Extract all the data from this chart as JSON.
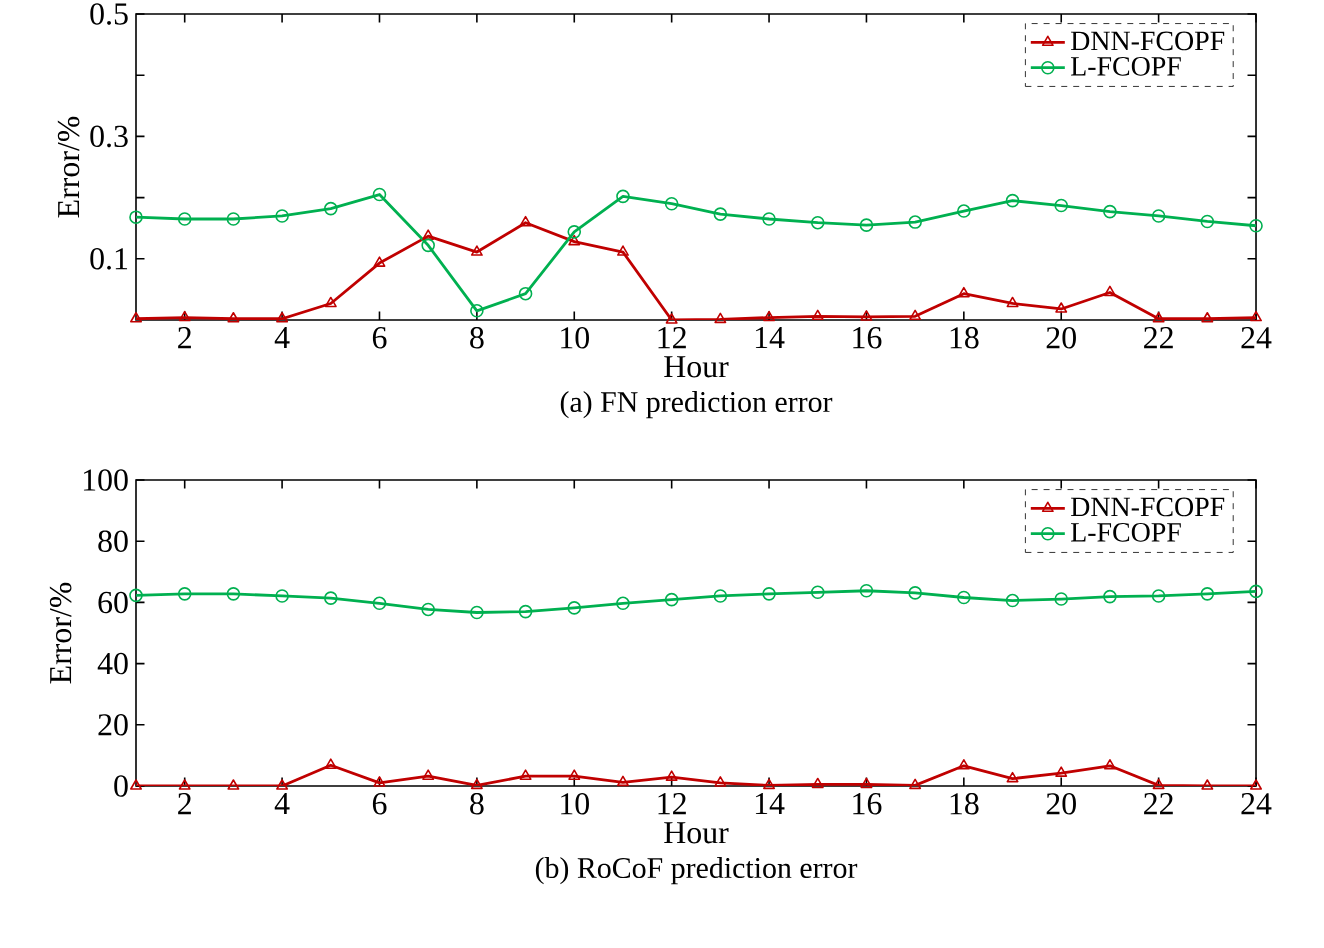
{
  "chart_data": [
    {
      "type": "line",
      "title": "(a) FN prediction error",
      "xlabel": "Hour",
      "ylabel": "Error/%",
      "x": [
        1,
        2,
        3,
        4,
        5,
        6,
        7,
        8,
        9,
        10,
        11,
        12,
        13,
        14,
        15,
        16,
        17,
        18,
        19,
        20,
        21,
        22,
        23,
        24
      ],
      "xlim": [
        1,
        24
      ],
      "xticks": [
        2,
        4,
        6,
        8,
        10,
        12,
        14,
        16,
        18,
        20,
        22,
        24
      ],
      "ylim": [
        0,
        0.5
      ],
      "yticks": [
        0.1,
        {
          "value": 0.2,
          "label": null
        },
        0.3,
        {
          "value": 0.4,
          "label": null
        },
        0.5
      ],
      "legend": "top right",
      "grid": false,
      "line_style": "solid",
      "series": [
        {
          "name": "DNN-FCOPF",
          "color": "#c00000",
          "marker": "triangle",
          "values": [
            0.002,
            0.004,
            0.002,
            0.002,
            0.027,
            0.093,
            0.137,
            0.111,
            0.159,
            0.128,
            0.111,
            0,
            0.001,
            0.004,
            0.006,
            0.005,
            0.006,
            0.043,
            0.027,
            0.018,
            0.045,
            0.002,
            0.002,
            0.004
          ]
        },
        {
          "name": "L-FCOPF",
          "color": "#00b050",
          "marker": "circle",
          "values": [
            0.168,
            0.165,
            0.165,
            0.17,
            0.182,
            0.205,
            0.122,
            0.015,
            0.043,
            0.144,
            0.202,
            0.19,
            0.173,
            0.165,
            0.159,
            0.155,
            0.16,
            0.178,
            0.195,
            0.187,
            0.177,
            0.17,
            0.161,
            0.154
          ]
        }
      ]
    },
    {
      "type": "line",
      "title": "(b) RoCoF prediction error",
      "xlabel": "Hour",
      "ylabel": "Error/%",
      "x": [
        1,
        2,
        3,
        4,
        5,
        6,
        7,
        8,
        9,
        10,
        11,
        12,
        13,
        14,
        15,
        16,
        17,
        18,
        19,
        20,
        21,
        22,
        23,
        24
      ],
      "xlim": [
        1,
        24
      ],
      "xticks": [
        2,
        4,
        6,
        8,
        10,
        12,
        14,
        16,
        18,
        20,
        22,
        24
      ],
      "ylim": [
        0,
        100
      ],
      "yticks": [
        0,
        20,
        40,
        60,
        80,
        100
      ],
      "legend": "top right",
      "grid": false,
      "line_style": "solid",
      "series": [
        {
          "name": "DNN-FCOPF",
          "color": "#c00000",
          "marker": "triangle",
          "values": [
            0,
            0,
            0,
            0,
            6.8,
            1.0,
            3.2,
            0.2,
            3.2,
            3.2,
            1.2,
            2.9,
            1.0,
            0.2,
            0.5,
            0.5,
            0.2,
            6.6,
            2.4,
            4.2,
            6.6,
            0.2,
            0,
            0
          ]
        },
        {
          "name": "L-FCOPF",
          "color": "#00b050",
          "marker": "circle",
          "values": [
            62.3,
            62.8,
            62.8,
            62.1,
            61.4,
            59.7,
            57.7,
            56.7,
            57.0,
            58.2,
            59.7,
            60.9,
            62.1,
            62.8,
            63.3,
            63.8,
            63.1,
            61.6,
            60.6,
            61.1,
            61.9,
            62.1,
            62.8,
            63.6
          ]
        }
      ]
    }
  ]
}
